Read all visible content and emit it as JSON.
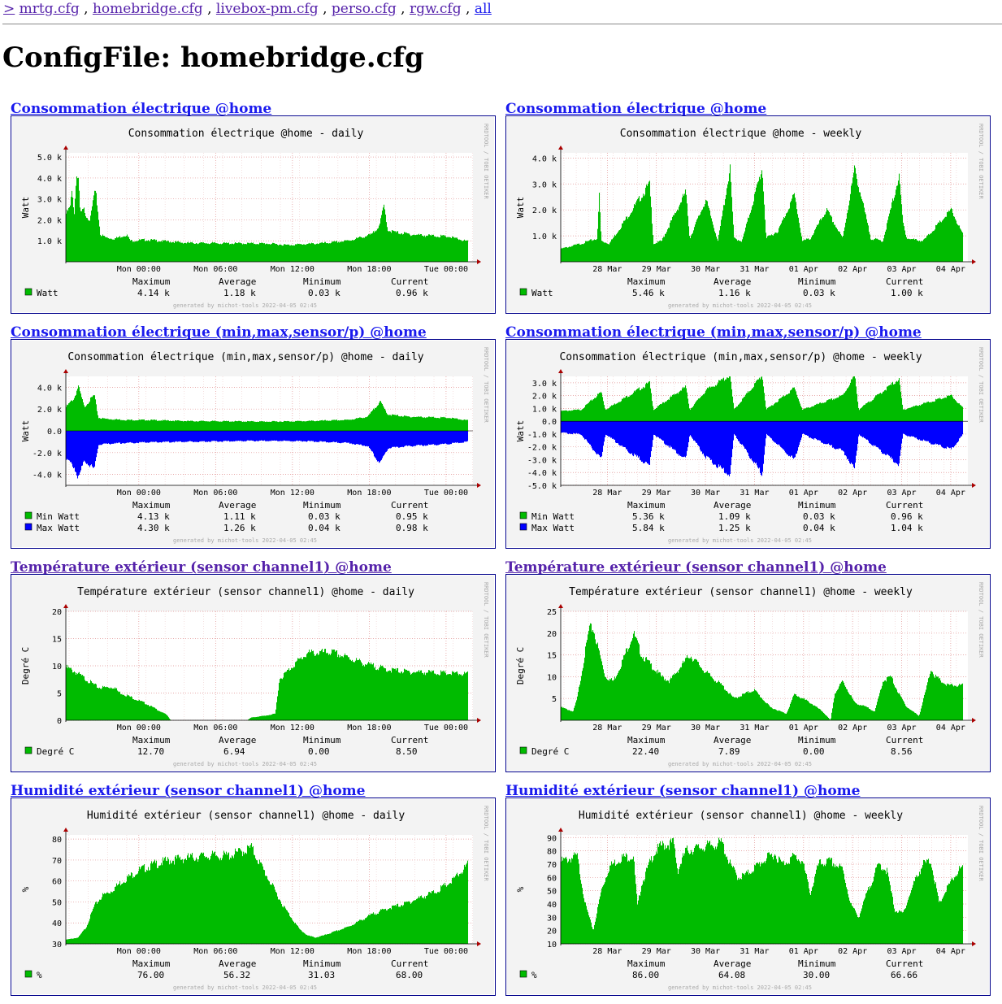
{
  "nav": {
    "prefix": ">",
    "links": [
      "mrtg.cfg",
      "homebridge.cfg",
      "livebox-pm.cfg",
      "perso.cfg",
      "rgw.cfg"
    ],
    "all": "all",
    "sep": ","
  },
  "page_title": "ConfigFile: homebridge.cfg",
  "common": {
    "vertical_credit": "RRDTOOL / TOBI OETIKER",
    "footer": "generated by michot-tools 2022-04-05 02:45",
    "stat_headers": [
      "Maximum",
      "Average",
      "Minimum",
      "Current"
    ],
    "colors": {
      "green": "#00bb00",
      "blue": "#0000ff",
      "grid": "#e09090",
      "canvas": "#f3f3f3",
      "link": "#1a1aee",
      "visited": "#5522aa"
    }
  },
  "graphs": [
    {
      "link_title": "Consommation électrique @home",
      "visited": false
    },
    {
      "link_title": "Consommation électrique @home",
      "visited": false
    },
    {
      "link_title": "Consommation électrique (min,max,sensor/p) @home",
      "visited": false
    },
    {
      "link_title": "Consommation électrique (min,max,sensor/p) @home",
      "visited": false
    },
    {
      "link_title": "Température extérieur (sensor channel1) @home",
      "visited": true
    },
    {
      "link_title": "Température extérieur (sensor channel1) @home",
      "visited": true
    },
    {
      "link_title": "Humidité extérieur (sensor channel1) @home",
      "visited": false
    },
    {
      "link_title": "Humidité extérieur (sensor channel1) @home",
      "visited": false
    }
  ],
  "chart_data": [
    {
      "type": "area",
      "title": "Consommation électrique @home - daily",
      "ylabel": "Watt",
      "ylim": [
        0,
        5200
      ],
      "yticks": [
        1000,
        2000,
        3000,
        4000,
        5000
      ],
      "ytick_labels": [
        "1.0 k",
        "2.0 k",
        "3.0 k",
        "4.0 k",
        "5.0 k"
      ],
      "xlabels": [
        "Mon 00:00",
        "Mon 06:00",
        "Mon 12:00",
        "Mon 18:00",
        "Tue 00:00"
      ],
      "grid": true,
      "x": [
        0,
        0.01,
        0.015,
        0.02,
        0.025,
        0.03,
        0.035,
        0.045,
        0.05,
        0.06,
        0.07,
        0.075,
        0.085,
        0.1,
        0.12,
        0.15,
        0.16,
        0.2,
        0.3,
        0.4,
        0.5,
        0.55,
        0.6,
        0.65,
        0.7,
        0.72,
        0.76,
        0.78,
        0.79,
        0.8,
        0.82,
        0.86,
        0.9,
        0.95,
        1.0
      ],
      "series": [
        {
          "name": "Watt",
          "color": "#00bb00",
          "values": [
            2300,
            2600,
            3500,
            2200,
            4100,
            4000,
            2300,
            2500,
            2200,
            2000,
            3300,
            3100,
            1300,
            1150,
            1100,
            1300,
            1000,
            1050,
            900,
            880,
            870,
            800,
            850,
            900,
            1000,
            1100,
            1300,
            1800,
            2700,
            1500,
            1400,
            1300,
            1250,
            1200,
            960
          ]
        }
      ],
      "legend": [
        {
          "label": "Watt",
          "color": "#00bb00",
          "stats": [
            "4.14 k",
            "1.18 k",
            "0.03 k",
            "0.96 k"
          ]
        }
      ]
    },
    {
      "type": "area",
      "title": "Consommation électrique @home - weekly",
      "ylabel": "Watt",
      "ylim": [
        0,
        4200
      ],
      "yticks": [
        1000,
        2000,
        3000,
        4000
      ],
      "ytick_labels": [
        "1.0 k",
        "2.0 k",
        "3.0 k",
        "4.0 k"
      ],
      "xlabels": [
        "28 Mar",
        "29 Mar",
        "30 Mar",
        "31 Mar",
        "01 Apr",
        "02 Apr",
        "03 Apr",
        "04 Apr"
      ],
      "grid": true,
      "x": [
        0,
        0.05,
        0.09,
        0.095,
        0.1,
        0.12,
        0.22,
        0.23,
        0.25,
        0.31,
        0.32,
        0.36,
        0.39,
        0.42,
        0.43,
        0.45,
        0.5,
        0.51,
        0.54,
        0.58,
        0.6,
        0.62,
        0.66,
        0.7,
        0.73,
        0.77,
        0.8,
        0.84,
        0.85,
        0.86,
        0.9,
        0.97,
        1.0
      ],
      "series": [
        {
          "name": "Watt",
          "color": "#00bb00",
          "values": [
            500,
            700,
            900,
            2600,
            800,
            700,
            3000,
            700,
            800,
            2700,
            900,
            2400,
            800,
            3600,
            900,
            800,
            3600,
            900,
            1200,
            2600,
            800,
            900,
            2000,
            900,
            3600,
            900,
            800,
            3300,
            1500,
            900,
            800,
            2000,
            1000
          ]
        }
      ],
      "legend": [
        {
          "label": "Watt",
          "color": "#00bb00",
          "stats": [
            "5.46 k",
            "1.16 k",
            "0.03 k",
            "1.00 k"
          ]
        }
      ]
    },
    {
      "type": "area",
      "title": "Consommation électrique (min,max,sensor/p) @home - daily",
      "ylabel": "Watt",
      "ylim": [
        -5000,
        5000
      ],
      "yticks": [
        -4000,
        -2000,
        0,
        2000,
        4000
      ],
      "ytick_labels": [
        "-4.0 k",
        "-2.0 k",
        "0.0",
        "2.0 k",
        "4.0 k"
      ],
      "xlabels": [
        "Mon 00:00",
        "Mon 06:00",
        "Mon 12:00",
        "Mon 18:00",
        "Tue 00:00"
      ],
      "grid": true,
      "x": [
        0,
        0.02,
        0.03,
        0.045,
        0.07,
        0.08,
        0.1,
        0.15,
        0.2,
        0.3,
        0.4,
        0.5,
        0.6,
        0.7,
        0.75,
        0.78,
        0.8,
        0.85,
        0.9,
        0.95,
        1.0
      ],
      "series": [
        {
          "name": "Min Watt",
          "color": "#00bb00",
          "values": [
            2200,
            3000,
            4100,
            2200,
            3300,
            1200,
            1100,
            1000,
            1000,
            900,
            880,
            850,
            900,
            1000,
            1300,
            2700,
            1500,
            1300,
            1250,
            1200,
            950
          ]
        },
        {
          "name": "Max Watt",
          "color": "#0000ff",
          "values": [
            -2600,
            -3300,
            -4300,
            -2700,
            -3500,
            -1300,
            -1200,
            -1100,
            -1050,
            -1000,
            -950,
            -900,
            -950,
            -1100,
            -1400,
            -3000,
            -1600,
            -1400,
            -1300,
            -1200,
            -980
          ]
        }
      ],
      "legend": [
        {
          "label": "Min Watt",
          "color": "#00bb00",
          "stats": [
            "4.13 k",
            "1.11 k",
            "0.03 k",
            "0.95 k"
          ]
        },
        {
          "label": "Max Watt",
          "color": "#0000ff",
          "stats": [
            "4.30 k",
            "1.26 k",
            "0.04 k",
            "0.98 k"
          ]
        }
      ]
    },
    {
      "type": "area",
      "title": "Consommation électrique (min,max,sensor/p) @home - weekly",
      "ylabel": "Watt",
      "ylim": [
        -5000,
        3500
      ],
      "yticks": [
        -5000,
        -4000,
        -3000,
        -2000,
        -1000,
        0,
        1000,
        2000,
        3000
      ],
      "ytick_labels": [
        "-5.0 k",
        "-4.0 k",
        "-3.0 k",
        "-2.0 k",
        "-1.0 k",
        "0.0",
        "1.0 k",
        "2.0 k",
        "3.0 k"
      ],
      "xlabels": [
        "28 Mar",
        "29 Mar",
        "30 Mar",
        "31 Mar",
        "01 Apr",
        "02 Apr",
        "03 Apr",
        "04 Apr"
      ],
      "grid": true,
      "x": [
        0,
        0.05,
        0.1,
        0.11,
        0.22,
        0.23,
        0.31,
        0.32,
        0.36,
        0.42,
        0.43,
        0.5,
        0.51,
        0.58,
        0.6,
        0.7,
        0.73,
        0.74,
        0.84,
        0.85,
        0.97,
        1.0
      ],
      "series": [
        {
          "name": "Min Watt",
          "color": "#00bb00",
          "values": [
            800,
            900,
            2300,
            900,
            3000,
            900,
            2700,
            900,
            2400,
            3600,
            900,
            3600,
            900,
            2600,
            900,
            2000,
            3600,
            900,
            3300,
            900,
            2000,
            1000
          ]
        },
        {
          "name": "Max Watt",
          "color": "#0000ff",
          "values": [
            -900,
            -1000,
            -3000,
            -1000,
            -3500,
            -1000,
            -3000,
            -1000,
            -2800,
            -4200,
            -1000,
            -4100,
            -1000,
            -3000,
            -1000,
            -2300,
            -3700,
            -1000,
            -3400,
            -1000,
            -2200,
            -1000
          ]
        }
      ],
      "legend": [
        {
          "label": "Min Watt",
          "color": "#00bb00",
          "stats": [
            "5.36 k",
            "1.09 k",
            "0.03 k",
            "0.96 k"
          ]
        },
        {
          "label": "Max Watt",
          "color": "#0000ff",
          "stats": [
            "5.84 k",
            "1.25 k",
            "0.04 k",
            "1.04 k"
          ]
        }
      ]
    },
    {
      "type": "area",
      "title": "Température extérieur (sensor channel1) @home - daily",
      "ylabel": "Degré C",
      "ylim": [
        0,
        20
      ],
      "yticks": [
        0,
        5,
        10,
        15,
        20
      ],
      "ytick_labels": [
        "0",
        "5",
        "10",
        "15",
        "20"
      ],
      "xlabels": [
        "Mon 00:00",
        "Mon 06:00",
        "Mon 12:00",
        "Mon 18:00",
        "Tue 00:00"
      ],
      "grid": true,
      "x": [
        0,
        0.02,
        0.06,
        0.08,
        0.12,
        0.13,
        0.15,
        0.2,
        0.25,
        0.26,
        0.45,
        0.46,
        0.5,
        0.52,
        0.53,
        0.57,
        0.6,
        0.66,
        0.7,
        0.75,
        0.8,
        0.85,
        0.9,
        0.95,
        0.99
      ],
      "series": [
        {
          "name": "Degré C",
          "color": "#00bb00",
          "values": [
            9.7,
            9.0,
            7.0,
            6.0,
            6.1,
            5.2,
            4.6,
            3.0,
            1.0,
            0,
            0,
            0.5,
            0.9,
            1.2,
            7.5,
            10.5,
            12.3,
            12.5,
            11.5,
            10.2,
            9.3,
            8.9,
            8.8,
            8.6,
            8.5
          ]
        }
      ],
      "legend": [
        {
          "label": "Degré C",
          "color": "#00bb00",
          "stats": [
            "12.70",
            "6.94",
            "0.00",
            "8.50"
          ]
        }
      ]
    },
    {
      "type": "area",
      "title": "Température extérieur (sensor channel1) @home - weekly",
      "ylabel": "Degré C",
      "ylim": [
        0,
        25
      ],
      "yticks": [
        5,
        10,
        15,
        20,
        25
      ],
      "ytick_labels": [
        "5",
        "10",
        "15",
        "20",
        "25"
      ],
      "xlabels": [
        "28 Mar",
        "29 Mar",
        "30 Mar",
        "31 Mar",
        "01 Apr",
        "02 Apr",
        "03 Apr",
        "04 Apr"
      ],
      "grid": true,
      "x": [
        0,
        0.03,
        0.04,
        0.07,
        0.08,
        0.11,
        0.13,
        0.15,
        0.18,
        0.2,
        0.25,
        0.27,
        0.32,
        0.36,
        0.4,
        0.43,
        0.48,
        0.52,
        0.56,
        0.58,
        0.62,
        0.65,
        0.67,
        0.68,
        0.7,
        0.73,
        0.76,
        0.78,
        0.8,
        0.82,
        0.84,
        0.86,
        0.89,
        0.91,
        0.92,
        0.93,
        0.96,
        0.99
      ],
      "series": [
        {
          "name": "Degré C",
          "color": "#00bb00",
          "values": [
            3,
            2,
            5,
            21,
            21,
            10,
            9,
            13,
            20,
            15,
            10,
            9,
            15,
            11,
            8,
            5,
            7,
            3,
            1.5,
            6,
            4,
            2,
            0,
            6,
            9,
            4,
            3,
            2,
            9,
            10,
            6,
            3,
            1,
            8,
            12,
            10,
            8,
            8
          ]
        }
      ],
      "legend": [
        {
          "label": "Degré C",
          "color": "#00bb00",
          "stats": [
            "22.40",
            "7.89",
            "0.00",
            "8.56"
          ]
        }
      ]
    },
    {
      "type": "area",
      "title": "Humidité extérieur (sensor channel1) @home - daily",
      "ylabel": "%",
      "ylim": [
        30,
        82
      ],
      "yticks": [
        30,
        40,
        50,
        60,
        70,
        80
      ],
      "ytick_labels": [
        "30",
        "40",
        "50",
        "60",
        "70",
        "80"
      ],
      "xlabels": [
        "Mon 00:00",
        "Mon 06:00",
        "Mon 12:00",
        "Mon 18:00",
        "Tue 00:00"
      ],
      "grid": true,
      "x": [
        0,
        0.03,
        0.05,
        0.07,
        0.09,
        0.11,
        0.14,
        0.18,
        0.22,
        0.26,
        0.3,
        0.35,
        0.4,
        0.42,
        0.45,
        0.46,
        0.5,
        0.54,
        0.58,
        0.6,
        0.62,
        0.64,
        0.7,
        0.76,
        0.8,
        0.84,
        0.88,
        0.92,
        0.96,
        1.0
      ],
      "series": [
        {
          "name": "%",
          "color": "#00bb00",
          "values": [
            32,
            33,
            38,
            48,
            53,
            55,
            60,
            65,
            68,
            70,
            71,
            72,
            72,
            73,
            75,
            76,
            62,
            48,
            37,
            34,
            33,
            34,
            38,
            44,
            47,
            49,
            52,
            55,
            60,
            68
          ]
        }
      ],
      "legend": [
        {
          "label": "%",
          "color": "#00bb00",
          "stats": [
            "76.00",
            "56.32",
            "31.03",
            "68.00"
          ]
        }
      ]
    },
    {
      "type": "area",
      "title": "Humidité extérieur (sensor channel1) @home - weekly",
      "ylabel": "%",
      "ylim": [
        10,
        92
      ],
      "yticks": [
        10,
        20,
        30,
        40,
        50,
        60,
        70,
        80,
        90
      ],
      "ytick_labels": [
        "10",
        "20",
        "30",
        "40",
        "50",
        "60",
        "70",
        "80",
        "90"
      ],
      "xlabels": [
        "28 Mar",
        "29 Mar",
        "30 Mar",
        "31 Mar",
        "01 Apr",
        "02 Apr",
        "03 Apr",
        "04 Apr"
      ],
      "grid": true,
      "x": [
        0,
        0.04,
        0.06,
        0.08,
        0.1,
        0.12,
        0.15,
        0.18,
        0.19,
        0.2,
        0.23,
        0.25,
        0.28,
        0.29,
        0.31,
        0.34,
        0.37,
        0.4,
        0.42,
        0.44,
        0.46,
        0.5,
        0.53,
        0.55,
        0.58,
        0.6,
        0.62,
        0.64,
        0.67,
        0.7,
        0.72,
        0.74,
        0.76,
        0.79,
        0.81,
        0.83,
        0.85,
        0.88,
        0.9,
        0.92,
        0.94,
        0.96,
        0.99
      ],
      "series": [
        {
          "name": "%",
          "color": "#00bb00",
          "values": [
            72,
            76,
            40,
            20,
            50,
            68,
            75,
            76,
            38,
            55,
            78,
            84,
            86,
            65,
            80,
            82,
            84,
            86,
            70,
            60,
            62,
            72,
            78,
            70,
            76,
            72,
            48,
            70,
            72,
            66,
            40,
            30,
            48,
            70,
            65,
            35,
            33,
            58,
            70,
            72,
            40,
            52,
            66
          ]
        }
      ],
      "legend": [
        {
          "label": "%",
          "color": "#00bb00",
          "stats": [
            "86.00",
            "64.08",
            "30.00",
            "66.66"
          ]
        }
      ]
    }
  ]
}
